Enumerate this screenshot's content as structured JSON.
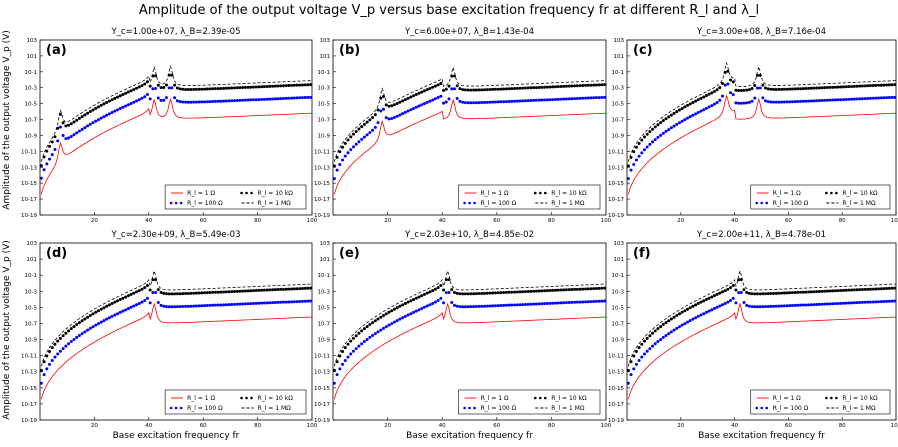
{
  "figure": {
    "title": "Amplitude of the output voltage V_p versus base excitation frequency fr at different R_l and λ_l",
    "ylabel": "Amplitude of the output voltage V_p (V)",
    "xlabel": "Base excitation frequency fr"
  },
  "chart_data": [
    {
      "type": "line",
      "panel": "(a)",
      "subtitle": "Y_c=1.00e+07, λ_B=2.39e-05",
      "xlim": [
        0,
        100
      ],
      "ylim": [
        "1e-19",
        "1e3"
      ],
      "yscale": "log",
      "resonances": [
        7.5,
        42,
        48
      ],
      "series": [
        {
          "name": "R_l = 1 Ω",
          "color": "#ff0000",
          "style": "line",
          "points": [
            [
              1,
              "1e-15"
            ],
            [
              7.5,
              "1e-12"
            ],
            [
              20,
              "1e-8"
            ],
            [
              38,
              "1e-6"
            ],
            [
              42,
              "1e-4"
            ],
            [
              46,
              "1e-6"
            ],
            [
              48,
              "1e-9"
            ],
            [
              60,
              "1e-7"
            ],
            [
              100,
              "1e-6"
            ]
          ]
        },
        {
          "name": "R_l = 100 Ω",
          "color": "#0000ff",
          "style": "dots",
          "points": [
            [
              1,
              "1e-13"
            ],
            [
              7.5,
              "1e-10"
            ],
            [
              20,
              "1e-6"
            ],
            [
              38,
              "1e-4"
            ],
            [
              42,
              "1e-2"
            ],
            [
              48,
              "1e-6"
            ],
            [
              60,
              "1e-5"
            ],
            [
              100,
              "1e-4"
            ]
          ]
        },
        {
          "name": "R_l = 10 kΩ",
          "color": "#000000",
          "style": "dots",
          "points": [
            [
              1,
              "1e-11"
            ],
            [
              7.5,
              "1e-8"
            ],
            [
              20,
              "1e-4"
            ],
            [
              38,
              "1e-3"
            ],
            [
              42,
              "1e-1"
            ],
            [
              48,
              "1e-1"
            ],
            [
              60,
              "1e-3"
            ],
            [
              100,
              "1e-2"
            ]
          ]
        },
        {
          "name": "R_l = 1 MΩ",
          "color": "#000000",
          "style": "dashed",
          "points": [
            [
              1,
              "1e-10"
            ],
            [
              7.5,
              "1e-7"
            ],
            [
              20,
              "1e-4"
            ],
            [
              38,
              "1e-3"
            ],
            [
              42,
              "1e-2"
            ],
            [
              48,
              "1e-3"
            ],
            [
              60,
              "1e-3"
            ],
            [
              100,
              "1e-3"
            ]
          ]
        }
      ]
    },
    {
      "type": "line",
      "panel": "(b)",
      "subtitle": "Y_c=6.00e+07, λ_B=1.43e-04",
      "xlim": [
        0,
        100
      ],
      "ylim": [
        "1e-19",
        "1e3"
      ],
      "yscale": "log",
      "resonances": [
        18,
        44
      ],
      "series": [
        {
          "name": "R_l = 1 Ω",
          "color": "#ff0000",
          "style": "line"
        },
        {
          "name": "R_l = 100 Ω",
          "color": "#0000ff",
          "style": "dots"
        },
        {
          "name": "R_l = 10 kΩ",
          "color": "#000000",
          "style": "dots"
        },
        {
          "name": "R_l = 1 MΩ",
          "color": "#000000",
          "style": "dashed"
        }
      ]
    },
    {
      "type": "line",
      "panel": "(c)",
      "subtitle": "Y_c=3.00e+08, λ_B=7.16e-04",
      "xlim": [
        0,
        100
      ],
      "ylim": [
        "1e-19",
        "1e3"
      ],
      "yscale": "log",
      "resonances": [
        37,
        49
      ],
      "series": [
        {
          "name": "R_l = 1 Ω",
          "color": "#ff0000",
          "style": "line"
        },
        {
          "name": "R_l = 100 Ω",
          "color": "#0000ff",
          "style": "dots"
        },
        {
          "name": "R_l = 10 kΩ",
          "color": "#000000",
          "style": "dots"
        },
        {
          "name": "R_l = 1 MΩ",
          "color": "#000000",
          "style": "dashed"
        }
      ]
    },
    {
      "type": "line",
      "panel": "(d)",
      "subtitle": "Y_c=2.30e+09, λ_B=5.49e-03",
      "xlim": [
        0,
        100
      ],
      "ylim": [
        "1e-19",
        "1e3"
      ],
      "yscale": "log",
      "resonances": [
        42
      ],
      "series": [
        {
          "name": "R_l = 1 Ω",
          "color": "#ff0000",
          "style": "line"
        },
        {
          "name": "R_l = 100 Ω",
          "color": "#0000ff",
          "style": "dots"
        },
        {
          "name": "R_l = 10 kΩ",
          "color": "#000000",
          "style": "dots"
        },
        {
          "name": "R_l = 1 MΩ",
          "color": "#000000",
          "style": "dashed"
        }
      ]
    },
    {
      "type": "line",
      "panel": "(e)",
      "subtitle": "Y_c=2.03e+10, λ_B=4.85e-02",
      "xlim": [
        0,
        100
      ],
      "ylim": [
        "1e-19",
        "1e3"
      ],
      "yscale": "log",
      "resonances": [
        42
      ],
      "series": [
        {
          "name": "R_l = 1 Ω",
          "color": "#ff0000",
          "style": "line"
        },
        {
          "name": "R_l = 100 Ω",
          "color": "#0000ff",
          "style": "dots"
        },
        {
          "name": "R_l = 10 kΩ",
          "color": "#000000",
          "style": "dots"
        },
        {
          "name": "R_l = 1 MΩ",
          "color": "#000000",
          "style": "dashed"
        }
      ]
    },
    {
      "type": "line",
      "panel": "(f)",
      "subtitle": "Y_c=2.00e+11, λ_B=4.78e-01",
      "xlim": [
        0,
        100
      ],
      "ylim": [
        "1e-19",
        "1e3"
      ],
      "yscale": "log",
      "resonances": [
        42
      ],
      "series": [
        {
          "name": "R_l = 1 Ω",
          "color": "#ff0000",
          "style": "line"
        },
        {
          "name": "R_l = 100 Ω",
          "color": "#0000ff",
          "style": "dots"
        },
        {
          "name": "R_l = 10 kΩ",
          "color": "#000000",
          "style": "dots"
        },
        {
          "name": "R_l = 1 MΩ",
          "color": "#000000",
          "style": "dashed"
        }
      ]
    }
  ],
  "axes": {
    "xticks": [
      "20",
      "40",
      "60",
      "80",
      "100"
    ],
    "yticks": [
      "10^3",
      "10^1",
      "10^-1",
      "10^-3",
      "10^-5",
      "10^-7",
      "10^-9",
      "10^-11",
      "10^-13",
      "10^-15",
      "10^-17",
      "10^-19"
    ]
  },
  "legend_labels": [
    "R_l = 1 Ω",
    "R_l = 10 kΩ",
    "R_l = 100 Ω",
    "R_l = 1 MΩ"
  ],
  "colors": {
    "red": "#ff0000",
    "blue": "#0000ff",
    "black": "#000000"
  }
}
